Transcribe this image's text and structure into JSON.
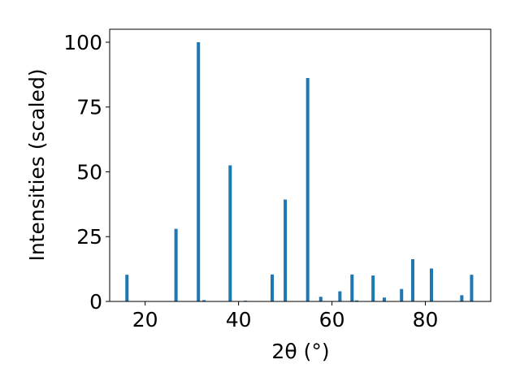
{
  "chart_data": {
    "type": "bar",
    "xlabel": "2θ (°)",
    "ylabel": "Intensities (scaled)",
    "xlim": [
      12.4,
      94.0
    ],
    "ylim": [
      0,
      105
    ],
    "x_ticks": [
      20,
      40,
      60,
      80
    ],
    "y_ticks": [
      0,
      25,
      50,
      75,
      100
    ],
    "bar_width": 0.7,
    "color": "#1f77b4",
    "x": [
      16.1,
      26.6,
      31.4,
      32.6,
      38.2,
      41.5,
      47.2,
      50.0,
      54.8,
      57.6,
      61.7,
      64.3,
      65.3,
      68.8,
      71.2,
      74.9,
      77.3,
      81.3,
      87.8,
      89.9
    ],
    "values": [
      10.3,
      28.0,
      100.0,
      0.5,
      52.5,
      0.3,
      10.4,
      39.3,
      86.2,
      1.8,
      3.9,
      10.4,
      0.4,
      10.0,
      1.5,
      4.8,
      16.3,
      12.7,
      2.4,
      10.3
    ]
  }
}
